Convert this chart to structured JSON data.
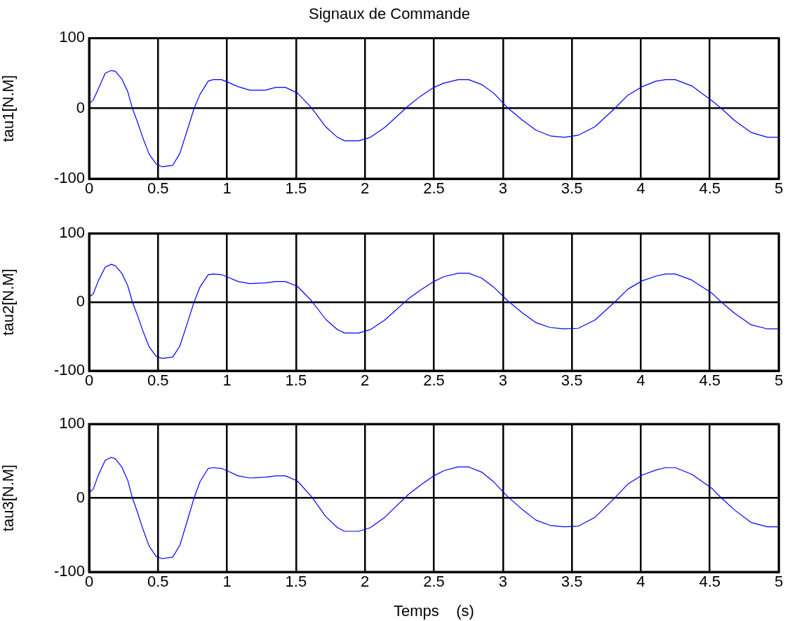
{
  "chart_data": [
    {
      "type": "line",
      "title": "Signaux de Commande",
      "ylabel": "tau1[N.M]",
      "xlim": [
        0,
        5
      ],
      "xticks": [
        0,
        0.5,
        1,
        1.5,
        2,
        2.5,
        3,
        3.5,
        4,
        4.5,
        5
      ],
      "ylim": [
        -100,
        100
      ],
      "yticks": [
        -100,
        0,
        100
      ],
      "grid": true,
      "x": [
        0,
        0.03,
        0.065,
        0.117,
        0.16,
        0.19,
        0.237,
        0.28,
        0.314,
        0.35,
        0.39,
        0.435,
        0.486,
        0.53,
        0.606,
        0.658,
        0.71,
        0.761,
        0.804,
        0.864,
        0.9,
        0.96,
        1.01,
        1.08,
        1.165,
        1.277,
        1.354,
        1.423,
        1.51,
        1.612,
        1.715,
        1.8,
        1.852,
        1.955,
        2.04,
        2.144,
        2.316,
        2.4,
        2.5,
        2.572,
        2.675,
        2.752,
        2.846,
        2.932,
        3.034,
        3.137,
        3.24,
        3.342,
        3.445,
        3.548,
        3.668,
        3.805,
        3.907,
        4.01,
        4.113,
        4.18,
        4.25,
        4.37,
        4.515,
        4.584,
        4.678,
        4.798,
        4.918,
        5
      ],
      "series": [
        {
          "color": "#0000ff",
          "values": [
            7,
            12,
            27,
            50,
            54,
            53,
            42,
            24,
            0,
            -19,
            -42,
            -65,
            -79,
            -83,
            -81,
            -64,
            -32,
            0,
            20,
            39,
            41,
            41,
            37,
            31,
            26,
            26,
            30,
            30,
            22,
            1,
            -26,
            -41,
            -46,
            -46,
            -41,
            -27,
            4,
            17,
            30,
            36,
            41,
            41,
            34,
            22,
            1,
            -16,
            -31,
            -39,
            -41,
            -38,
            -26,
            -1,
            19,
            31,
            39,
            41,
            41,
            32,
            11,
            0,
            -17,
            -34,
            -41,
            -41
          ]
        }
      ]
    },
    {
      "type": "line",
      "ylabel": "tau2[N.M]",
      "xlim": [
        0,
        5
      ],
      "xticks": [
        0,
        0.5,
        1,
        1.5,
        2,
        2.5,
        3,
        3.5,
        4,
        4.5,
        5
      ],
      "ylim": [
        -100,
        100
      ],
      "yticks": [
        -100,
        0,
        100
      ],
      "grid": true,
      "x": [
        0,
        0.03,
        0.065,
        0.117,
        0.16,
        0.19,
        0.237,
        0.28,
        0.314,
        0.35,
        0.39,
        0.435,
        0.486,
        0.53,
        0.606,
        0.658,
        0.71,
        0.761,
        0.804,
        0.864,
        0.9,
        0.96,
        1.01,
        1.08,
        1.165,
        1.277,
        1.354,
        1.423,
        1.51,
        1.612,
        1.715,
        1.8,
        1.852,
        1.955,
        2.04,
        2.144,
        2.316,
        2.4,
        2.5,
        2.572,
        2.675,
        2.752,
        2.846,
        2.932,
        3.034,
        3.137,
        3.24,
        3.342,
        3.445,
        3.548,
        3.668,
        3.805,
        3.907,
        4.01,
        4.113,
        4.18,
        4.25,
        4.37,
        4.515,
        4.584,
        4.678,
        4.798,
        4.918,
        5
      ],
      "series": [
        {
          "color": "#0000ff",
          "values": [
            7,
            12,
            30,
            51,
            55,
            53,
            42,
            24,
            0,
            -19,
            -42,
            -65,
            -79,
            -82,
            -80,
            -64,
            -32,
            0,
            22,
            40,
            41,
            40,
            36,
            30,
            27,
            28,
            30,
            30,
            23,
            2,
            -25,
            -40,
            -45,
            -45,
            -40,
            -26,
            5,
            17,
            30,
            37,
            42,
            42,
            35,
            22,
            2,
            -15,
            -30,
            -37,
            -39,
            -38,
            -26,
            -1,
            19,
            31,
            38,
            41,
            41,
            32,
            13,
            0,
            -16,
            -33,
            -39,
            -39
          ]
        }
      ]
    },
    {
      "type": "line",
      "ylabel": "tau3[N.M]",
      "xlabel": "Temps    (s)",
      "xlim": [
        0,
        5
      ],
      "xticks": [
        0,
        0.5,
        1,
        1.5,
        2,
        2.5,
        3,
        3.5,
        4,
        4.5,
        5
      ],
      "ylim": [
        -100,
        100
      ],
      "yticks": [
        -100,
        0,
        100
      ],
      "grid": true,
      "x": [
        0,
        0.03,
        0.065,
        0.117,
        0.16,
        0.19,
        0.237,
        0.28,
        0.314,
        0.35,
        0.39,
        0.435,
        0.486,
        0.53,
        0.606,
        0.658,
        0.71,
        0.761,
        0.804,
        0.864,
        0.9,
        0.96,
        1.01,
        1.08,
        1.165,
        1.277,
        1.354,
        1.423,
        1.51,
        1.612,
        1.715,
        1.8,
        1.852,
        1.955,
        2.04,
        2.144,
        2.316,
        2.4,
        2.5,
        2.572,
        2.675,
        2.752,
        2.846,
        2.932,
        3.034,
        3.137,
        3.24,
        3.342,
        3.445,
        3.548,
        3.668,
        3.805,
        3.907,
        4.01,
        4.113,
        4.18,
        4.25,
        4.37,
        4.515,
        4.584,
        4.678,
        4.798,
        4.918,
        5
      ],
      "series": [
        {
          "color": "#0000ff",
          "values": [
            7,
            12,
            30,
            51,
            55,
            53,
            42,
            24,
            0,
            -19,
            -42,
            -65,
            -79,
            -82,
            -80,
            -64,
            -32,
            0,
            22,
            40,
            41,
            40,
            36,
            30,
            27,
            28,
            30,
            30,
            23,
            2,
            -25,
            -40,
            -45,
            -45,
            -40,
            -26,
            5,
            17,
            30,
            37,
            42,
            42,
            35,
            22,
            2,
            -15,
            -30,
            -37,
            -39,
            -38,
            -26,
            -1,
            19,
            31,
            38,
            41,
            41,
            32,
            13,
            0,
            -16,
            -33,
            -39,
            -39
          ]
        }
      ]
    }
  ]
}
